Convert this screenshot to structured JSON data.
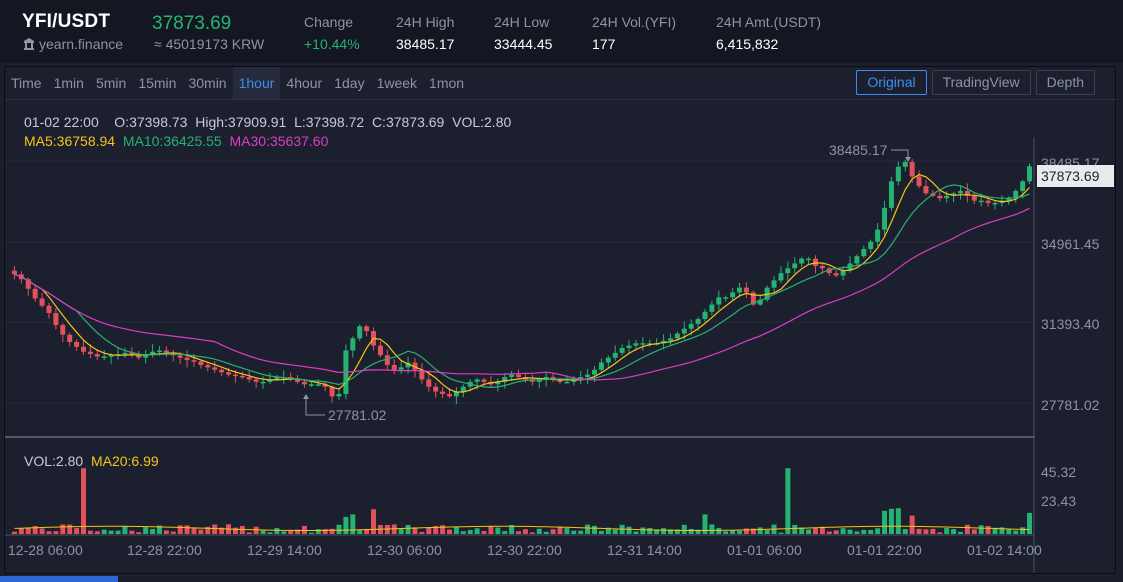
{
  "header": {
    "pair": "YFI/USDT",
    "project": "yearn.finance",
    "last_price": "37873.69",
    "krw_price": "≈ 45019173 KRW",
    "stats": [
      {
        "label": "Change",
        "value": "+10.44%",
        "up": true
      },
      {
        "label": "24H High",
        "value": "38485.17",
        "up": false
      },
      {
        "label": "24H Low",
        "value": "33444.45",
        "up": false
      },
      {
        "label": "24H Vol.(YFI)",
        "value": "177",
        "up": false
      },
      {
        "label": "24H Amt.(USDT)",
        "value": "6,415,832",
        "up": false
      }
    ]
  },
  "intervals": [
    "Time",
    "1min",
    "5min",
    "15min",
    "30min",
    "1hour",
    "4hour",
    "1day",
    "1week",
    "1mon"
  ],
  "active_interval": "1hour",
  "views": [
    "Original",
    "TradingView",
    "Depth"
  ],
  "active_view": "Original",
  "ohlc_line": "01-02 22:00    O:37398.73  High:37909.91  L:37398.72  C:37873.69  VOL:2.80",
  "ma_line": {
    "ma5": "MA5:36758.94",
    "ma10": "MA10:36425.55",
    "ma30": "MA30:35637.60"
  },
  "vol_line": {
    "vol": "VOL:2.80",
    "ma20": "MA20:6.99"
  },
  "price_axis": [
    "38485.17",
    "34961.45",
    "31393.40",
    "27781.02"
  ],
  "current_price_tag": "37873.69",
  "volume_axis": [
    "45.32",
    "23.43"
  ],
  "time_axis": [
    "12-28 06:00",
    "12-28 22:00",
    "12-29 14:00",
    "12-30 06:00",
    "12-30 22:00",
    "12-31 14:00",
    "01-01 06:00",
    "01-01 22:00",
    "01-02 14:00"
  ],
  "high_marker": "38485.17",
  "low_marker": "27781.02",
  "colors": {
    "up": "#25b374",
    "down": "#e2525c",
    "ma5": "#f5c518",
    "ma10": "#25b374",
    "ma30": "#d93ec3",
    "accent": "#3b8ef0"
  },
  "chart_data": {
    "type": "candlestick",
    "y_range": [
      27000,
      39000
    ],
    "volume_range": [
      0,
      50
    ],
    "closes": [
      33400,
      33200,
      32800,
      32400,
      32100,
      31800,
      31300,
      30900,
      30600,
      30400,
      30200,
      30100,
      30000,
      30000,
      30050,
      30100,
      30150,
      30050,
      29950,
      30100,
      30200,
      30250,
      30150,
      30050,
      29950,
      29850,
      29800,
      29650,
      29550,
      29450,
      29350,
      29250,
      29200,
      29150,
      29050,
      28950,
      28950,
      29050,
      29150,
      29150,
      29050,
      28950,
      28850,
      28850,
      28850,
      28750,
      28350,
      28450,
      30250,
      30750,
      31250,
      31050,
      30450,
      30050,
      29650,
      29450,
      29550,
      29750,
      29450,
      29050,
      28750,
      28550,
      28450,
      28350,
      28550,
      28750,
      28950,
      29050,
      28950,
      28850,
      28950,
      29150,
      29250,
      29150,
      29050,
      28950,
      29050,
      29150,
      29050,
      28950,
      28950,
      29050,
      29150,
      29250,
      29450,
      29750,
      29950,
      30150,
      30350,
      30450,
      30550,
      30550,
      30550,
      30550,
      30650,
      30750,
      30950,
      31150,
      31350,
      31550,
      31850,
      32150,
      32450,
      32450,
      32650,
      32850,
      32650,
      32150,
      32350,
      32850,
      33150,
      33450,
      33650,
      33850,
      34050,
      34050,
      33750,
      33650,
      33450,
      33350,
      33550,
      33850,
      34150,
      34450,
      34750,
      35250,
      36150,
      37250,
      37850,
      38050,
      37450,
      37050,
      36750,
      36650,
      36550,
      36650,
      36750,
      36850,
      36650,
      36450,
      36450,
      36350,
      36350,
      36450,
      36550,
      36850,
      37250,
      37873
    ]
  }
}
